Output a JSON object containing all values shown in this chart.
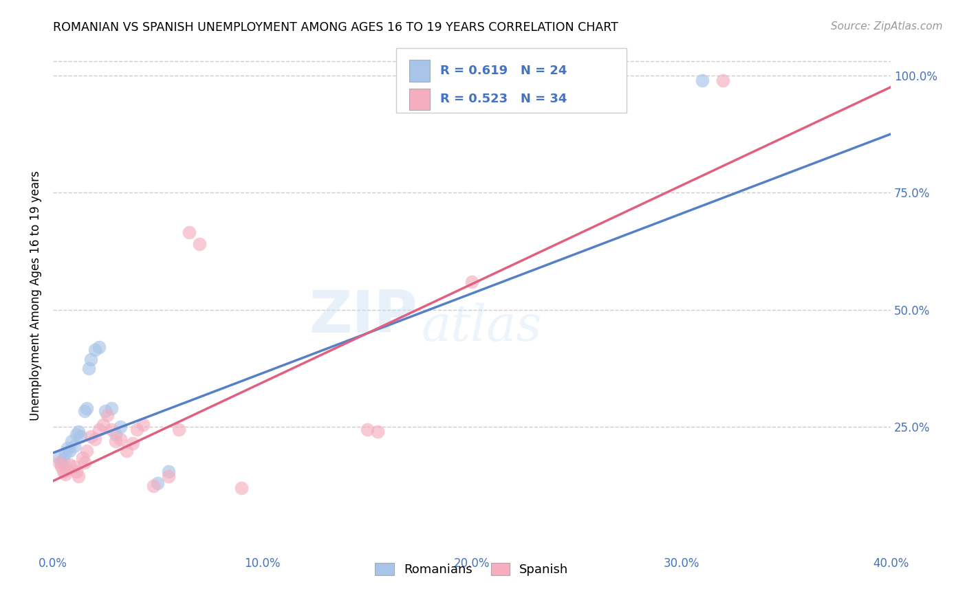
{
  "title": "ROMANIAN VS SPANISH UNEMPLOYMENT AMONG AGES 16 TO 19 YEARS CORRELATION CHART",
  "source": "Source: ZipAtlas.com",
  "ylabel": "Unemployment Among Ages 16 to 19 years",
  "xlim": [
    0.0,
    0.4
  ],
  "ylim": [
    -0.02,
    1.08
  ],
  "xtick_labels": [
    "0.0%",
    "",
    "10.0%",
    "",
    "20.0%",
    "",
    "30.0%",
    "",
    "40.0%"
  ],
  "xtick_vals": [
    0.0,
    0.05,
    0.1,
    0.15,
    0.2,
    0.25,
    0.3,
    0.35,
    0.4
  ],
  "ytick_labels": [
    "25.0%",
    "50.0%",
    "75.0%",
    "100.0%"
  ],
  "ytick_vals": [
    0.25,
    0.5,
    0.75,
    1.0
  ],
  "romanian_R": 0.619,
  "romanian_N": 24,
  "spanish_R": 0.523,
  "spanish_N": 34,
  "romanian_color": "#a8c4e8",
  "spanish_color": "#f4aec0",
  "romanian_line_color": "#5580c8",
  "spanish_line_color": "#e06080",
  "watermark": "ZIPatlas",
  "ro_line_x0": 0.0,
  "ro_line_y0": 0.195,
  "ro_line_x1": 0.4,
  "ro_line_y1": 0.875,
  "sp_line_x0": 0.0,
  "sp_line_y0": 0.135,
  "sp_line_x1": 0.4,
  "sp_line_y1": 0.975,
  "romanian_x": [
    0.003,
    0.004,
    0.005,
    0.006,
    0.007,
    0.008,
    0.009,
    0.01,
    0.011,
    0.012,
    0.013,
    0.015,
    0.016,
    0.017,
    0.018,
    0.02,
    0.022,
    0.025,
    0.028,
    0.03,
    0.032,
    0.05,
    0.055,
    0.31
  ],
  "romanian_y": [
    0.185,
    0.175,
    0.18,
    0.195,
    0.205,
    0.2,
    0.22,
    0.21,
    0.235,
    0.24,
    0.23,
    0.285,
    0.29,
    0.375,
    0.395,
    0.415,
    0.42,
    0.285,
    0.29,
    0.235,
    0.25,
    0.13,
    0.155,
    0.99
  ],
  "spanish_x": [
    0.003,
    0.004,
    0.005,
    0.006,
    0.007,
    0.008,
    0.01,
    0.011,
    0.012,
    0.014,
    0.015,
    0.016,
    0.018,
    0.02,
    0.022,
    0.024,
    0.026,
    0.028,
    0.03,
    0.032,
    0.035,
    0.038,
    0.04,
    0.043,
    0.048,
    0.055,
    0.06,
    0.065,
    0.07,
    0.09,
    0.15,
    0.155,
    0.2,
    0.32
  ],
  "spanish_y": [
    0.175,
    0.165,
    0.155,
    0.15,
    0.16,
    0.17,
    0.165,
    0.155,
    0.145,
    0.185,
    0.175,
    0.2,
    0.23,
    0.225,
    0.245,
    0.255,
    0.275,
    0.245,
    0.22,
    0.225,
    0.2,
    0.215,
    0.245,
    0.255,
    0.125,
    0.145,
    0.245,
    0.665,
    0.64,
    0.12,
    0.245,
    0.24,
    0.56,
    0.99
  ]
}
